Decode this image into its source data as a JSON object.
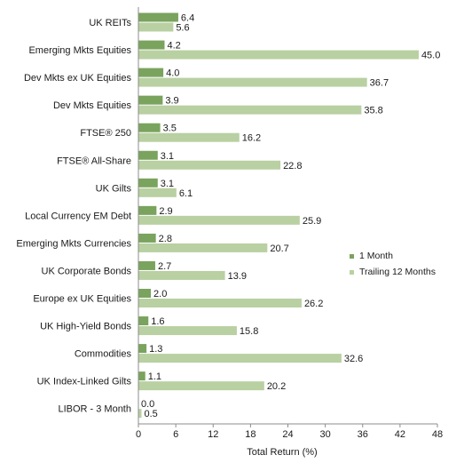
{
  "chart_data": {
    "type": "bar",
    "orientation": "horizontal",
    "categories": [
      "UK REITs",
      "Emerging Mkts Equities",
      "Dev Mkts ex UK Equities",
      "Dev Mkts Equities",
      "FTSE® 250",
      "FTSE® All-Share",
      "UK Gilts",
      "Local Currency EM Debt",
      "Emerging Mkts Currencies",
      "UK Corporate Bonds",
      "Europe ex UK Equities",
      "UK High-Yield Bonds",
      "Commodities",
      "UK Index-Linked Gilts",
      "LIBOR - 3 Month"
    ],
    "series": [
      {
        "name": "1 Month",
        "color": "#7aa35e",
        "values": [
          6.4,
          4.2,
          4.0,
          3.9,
          3.5,
          3.1,
          3.1,
          2.9,
          2.8,
          2.7,
          2.0,
          1.6,
          1.3,
          1.1,
          0.0
        ],
        "labels": [
          "6.4",
          "4.2",
          "4.0",
          "3.9",
          "3.5",
          "3.1",
          "3.1",
          "2.9",
          "2.8",
          "2.7",
          "2.0",
          "1.6",
          "1.3",
          "1.1",
          "0.0"
        ]
      },
      {
        "name": "Trailing 12 Months",
        "color": "#b9d0a2",
        "values": [
          5.6,
          45.0,
          36.7,
          35.8,
          16.2,
          22.8,
          6.1,
          25.9,
          20.7,
          13.9,
          26.2,
          15.8,
          32.6,
          20.2,
          0.5
        ],
        "labels": [
          "5.6",
          "45.0",
          "36.7",
          "35.8",
          "16.2",
          "22.8",
          "6.1",
          "25.9",
          "20.7",
          "13.9",
          "26.2",
          "15.8",
          "32.6",
          "20.2",
          "0.5"
        ]
      }
    ],
    "xlabel": "Total Return (%)",
    "xlim": [
      0,
      48
    ],
    "xticks": [
      0,
      6,
      12,
      18,
      24,
      30,
      36,
      42,
      48
    ],
    "grid": false,
    "legend_position": "right"
  }
}
